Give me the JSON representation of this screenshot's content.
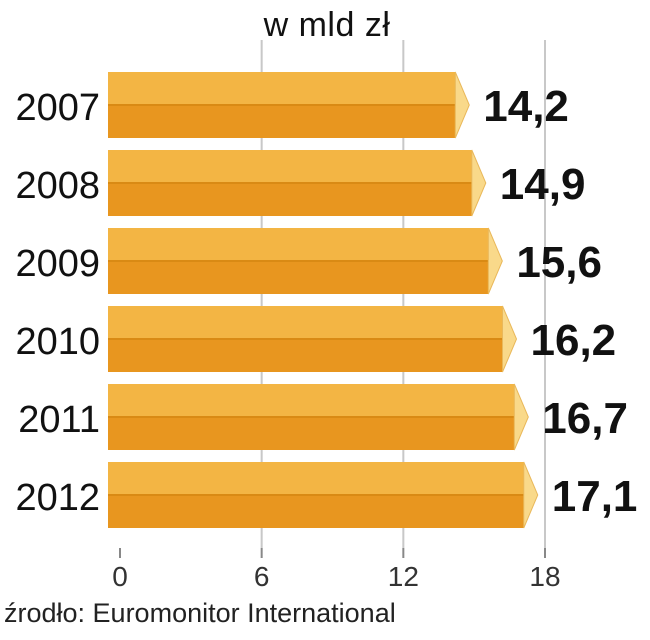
{
  "chart_data": {
    "type": "bar",
    "orientation": "horizontal",
    "unit_label": "w mld zł",
    "categories": [
      "2007",
      "2008",
      "2009",
      "2010",
      "2011",
      "2012"
    ],
    "values": [
      14.2,
      14.9,
      15.6,
      16.2,
      16.7,
      17.1
    ],
    "value_labels": [
      "14,2",
      "14,9",
      "15,6",
      "16,2",
      "16,7",
      "17,1"
    ],
    "xlim": [
      0,
      18
    ],
    "xticks": [
      0,
      6,
      12,
      18
    ],
    "grid": "vertical",
    "bar_style": "3d",
    "colors": {
      "bar_top": "#f3b544",
      "bar_bottom": "#e8961f",
      "bar_end": "#f9d98a",
      "grid": "#c8c8c8",
      "text": "#111111"
    }
  },
  "source": "źrodło: Euromonitor International"
}
